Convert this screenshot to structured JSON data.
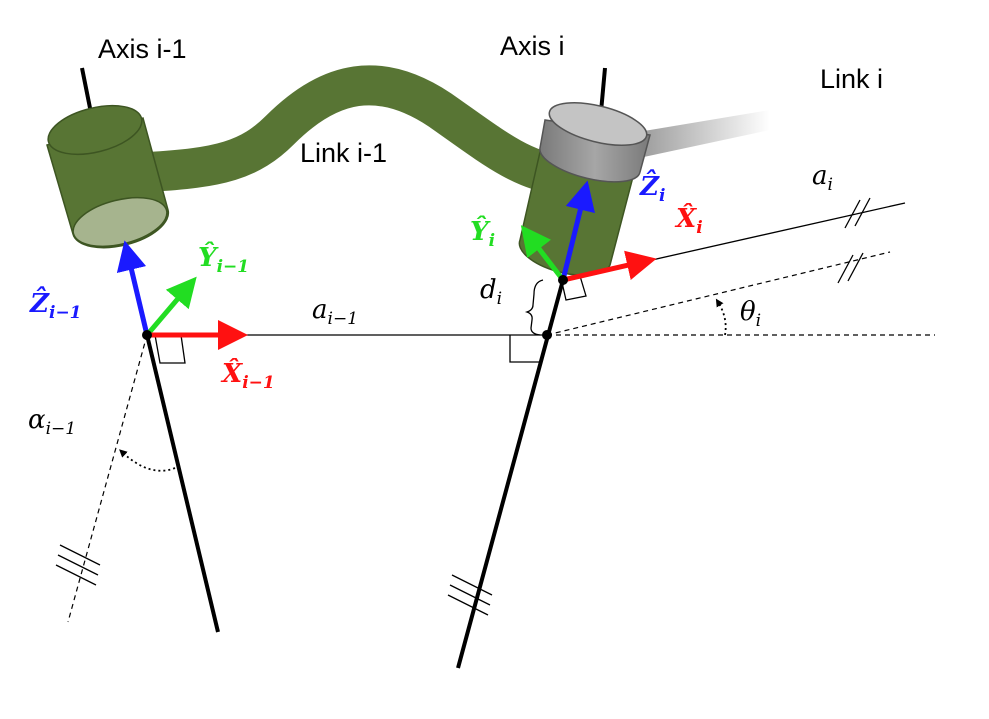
{
  "labels": {
    "axis_prev": "Axis i-1",
    "axis_curr": "Axis i",
    "link_prev": "Link i-1",
    "link_curr": "Link i"
  },
  "symbols": {
    "z_prev": {
      "base": "Ẑ",
      "sub": "i−1"
    },
    "y_prev": {
      "base": "Ŷ",
      "sub": "i−1"
    },
    "x_prev": {
      "base": "X̂",
      "sub": "i−1"
    },
    "z_curr": {
      "base": "Ẑ",
      "sub": "i"
    },
    "y_curr": {
      "base": "Ŷ",
      "sub": "i"
    },
    "x_curr": {
      "base": "X̂",
      "sub": "i"
    },
    "a_prev": {
      "base": "a",
      "sub": "i−1"
    },
    "a_curr": {
      "base": "a",
      "sub": "i"
    },
    "d_curr": {
      "base": "d",
      "sub": "i"
    },
    "theta_curr": {
      "base": "θ",
      "sub": "i"
    },
    "alpha_prev": {
      "base": "α",
      "sub": "i−1"
    }
  },
  "colors": {
    "z_axis": "#1a1aff",
    "y_axis": "#22dd22",
    "x_axis": "#ff1111",
    "link_green": "#587534",
    "link_grey": "#8c8c8c"
  }
}
